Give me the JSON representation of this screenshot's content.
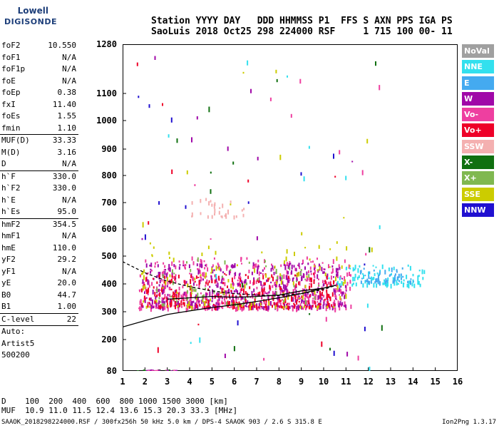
{
  "logo": {
    "line1": "Lowell",
    "line2": "DIGISONDE"
  },
  "header": {
    "line1": "Station YYYY DAY   DDD HHMMSS P1  FFS S AXN PPS IGA PS",
    "line2": "SaoLuis 2018 Oct25 298 224000 RSF     1 715 100 00- 11"
  },
  "params": [
    [
      {
        "k": "foF2",
        "v": "10.550"
      },
      {
        "k": "foF1",
        "v": "N/A"
      },
      {
        "k": "foF1p",
        "v": "N/A"
      },
      {
        "k": "foE",
        "v": "N/A"
      },
      {
        "k": "foEp",
        "v": "0.38"
      },
      {
        "k": "fxI",
        "v": "11.40"
      },
      {
        "k": "foEs",
        "v": "1.55"
      },
      {
        "k": "fmin",
        "v": "1.10"
      }
    ],
    [
      {
        "k": "MUF(D)",
        "v": "33.33"
      },
      {
        "k": "M(D)",
        "v": "3.16"
      },
      {
        "k": "D",
        "v": "N/A"
      }
    ],
    [
      {
        "k": "h`F",
        "v": "330.0"
      },
      {
        "k": "h`F2",
        "v": "330.0"
      },
      {
        "k": "h`E",
        "v": "N/A"
      },
      {
        "k": "h`Es",
        "v": "95.0"
      }
    ],
    [
      {
        "k": "hmF2",
        "v": "354.5"
      },
      {
        "k": "hmF1",
        "v": "N/A"
      },
      {
        "k": "hmE",
        "v": "110.0"
      },
      {
        "k": "yF2",
        "v": "29.2"
      },
      {
        "k": "yF1",
        "v": "N/A"
      },
      {
        "k": "yE",
        "v": "20.0"
      },
      {
        "k": "B0",
        "v": "44.7"
      },
      {
        "k": "B1",
        "v": "1.00"
      }
    ],
    [
      {
        "k": "C-level",
        "v": "22"
      }
    ],
    [
      {
        "k": "Auto:",
        "v": ""
      },
      {
        "k": "Artist5",
        "v": ""
      },
      {
        "k": "500200",
        "v": ""
      }
    ]
  ],
  "legend": [
    {
      "label": "NoVal",
      "color": "#a0a0a0"
    },
    {
      "label": "NNE",
      "color": "#33e0ee"
    },
    {
      "label": "E",
      "color": "#44aaf0"
    },
    {
      "label": "W",
      "color": "#a008a8"
    },
    {
      "label": "Vo-",
      "color": "#ee3fa0"
    },
    {
      "label": "Vo+",
      "color": "#ee0028"
    },
    {
      "label": "SSW",
      "color": "#f4b0b0"
    },
    {
      "label": "X-",
      "color": "#107010"
    },
    {
      "label": "X+",
      "color": "#80b850"
    },
    {
      "label": "SSE",
      "color": "#cccc00"
    },
    {
      "label": "NNW",
      "color": "#2010d0"
    }
  ],
  "distance_table": {
    "d_line": "D    100  200  400  600  800 1000 1500 3000 [km]",
    "muf_line": "MUF  10.9 11.0 11.5 12.4 13.6 15.3 20.3 33.3 [MHz]"
  },
  "footer": "SAAOK_2018298224000.RSF / 300fx256h 50 kHz 5.0 km / DPS-4 SAAOK 903 / 2.6 S 315.8 E",
  "version": "Ion2Png 1.3.17",
  "chart_data": {
    "type": "scatter",
    "xlabel": "",
    "ylabel": "",
    "xlim": [
      1,
      16
    ],
    "ylim": [
      80,
      1280
    ],
    "y_axis_scale": "piecewise-linear (compressed above 600 km)",
    "x_ticks": [
      1,
      2,
      3,
      4,
      5,
      6,
      7,
      8,
      9,
      10,
      11,
      12,
      13,
      14,
      15,
      16
    ],
    "y_ticks": [
      80,
      200,
      300,
      400,
      500,
      600,
      700,
      800,
      900,
      1000,
      1100,
      1280
    ],
    "series": [
      {
        "name": "Vo-",
        "color": "#ee3fa0",
        "region": {
          "x": [
            1.7,
            11.2
          ],
          "y": [
            315,
            500
          ]
        }
      },
      {
        "name": "W",
        "color": "#a008a8",
        "region": {
          "x": [
            1.8,
            11.0
          ],
          "y": [
            320,
            480
          ]
        }
      },
      {
        "name": "Vo+",
        "color": "#ee0028",
        "region": {
          "x": [
            1.8,
            10.5
          ],
          "y": [
            320,
            440
          ]
        }
      },
      {
        "name": "NNE",
        "color": "#33e0ee",
        "region": {
          "x": [
            10.5,
            14.5
          ],
          "y": [
            400,
            470
          ]
        }
      },
      {
        "name": "E",
        "color": "#44aaf0",
        "region": {
          "x": [
            11.5,
            14.0
          ],
          "y": [
            410,
            460
          ]
        }
      },
      {
        "name": "SSE",
        "color": "#cccc00",
        "region": {
          "x": [
            1.8,
            11.0
          ],
          "y": [
            320,
            560
          ]
        }
      },
      {
        "name": "X+",
        "color": "#80b850",
        "region": {
          "x": [
            2.5,
            10.0
          ],
          "y": [
            330,
            500
          ]
        }
      },
      {
        "name": "SSW",
        "color": "#f4b0b0",
        "region": {
          "x": [
            4.0,
            6.5
          ],
          "y": [
            650,
            720
          ]
        }
      }
    ],
    "profile_curves": [
      {
        "style": "solid",
        "points": [
          [
            1,
            245
          ],
          [
            2,
            268
          ],
          [
            3,
            290
          ],
          [
            4,
            303
          ],
          [
            5,
            315
          ],
          [
            6,
            325
          ],
          [
            7,
            337
          ],
          [
            8,
            350
          ],
          [
            9,
            365
          ],
          [
            10,
            385
          ],
          [
            10.55,
            395
          ]
        ]
      },
      {
        "style": "dashed",
        "points": [
          [
            1,
            480
          ],
          [
            2,
            440
          ],
          [
            3,
            410
          ],
          [
            4,
            390
          ],
          [
            5,
            375
          ],
          [
            6,
            365
          ],
          [
            7,
            360
          ],
          [
            8,
            358
          ],
          [
            9,
            365
          ],
          [
            10,
            380
          ],
          [
            10.55,
            395
          ]
        ]
      },
      {
        "style": "solid",
        "points": [
          [
            3,
            345
          ],
          [
            4,
            350
          ],
          [
            5,
            355
          ],
          [
            6,
            352
          ],
          [
            7,
            355
          ],
          [
            8,
            360
          ],
          [
            9,
            375
          ],
          [
            10,
            385
          ],
          [
            10.55,
            395
          ]
        ]
      }
    ]
  }
}
